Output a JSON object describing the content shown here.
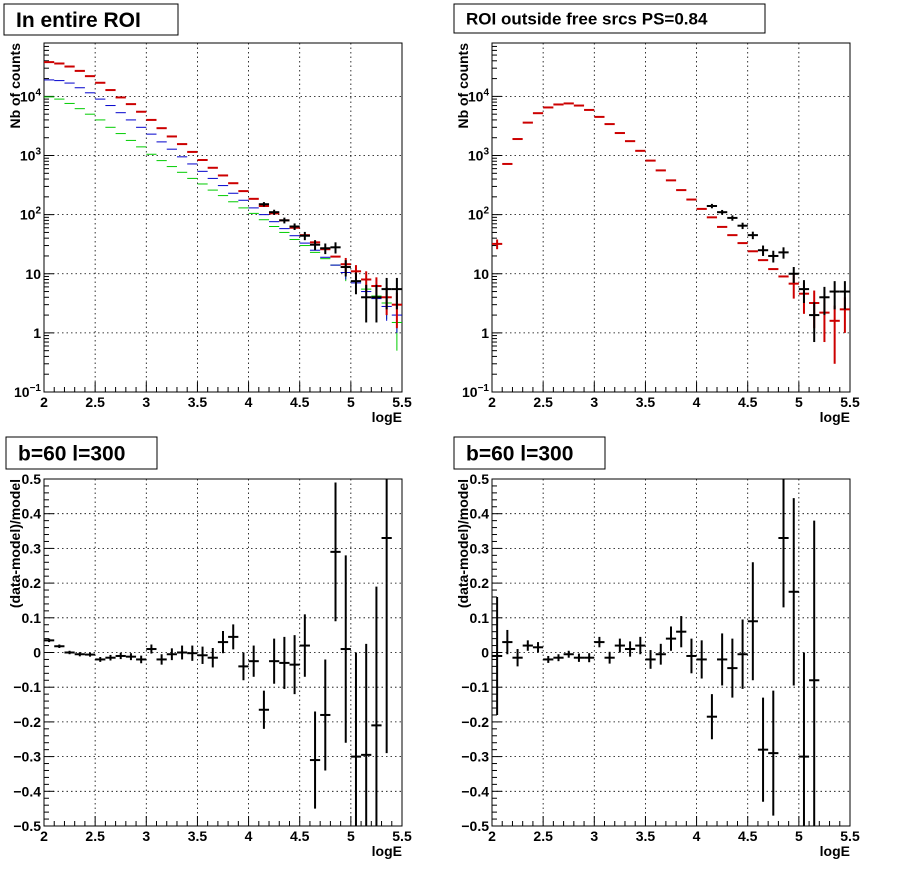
{
  "chart_data": [
    {
      "type": "scatter",
      "title": "In entire ROI",
      "xlabel": "logE",
      "ylabel": "Nb of counts",
      "xlim": [
        2,
        5.5
      ],
      "ylim": [
        0.1,
        80000
      ],
      "ylog": true,
      "grid": true,
      "xticks": [
        "2",
        "2.5",
        "3",
        "3.5",
        "4",
        "4.5",
        "5",
        "5.5"
      ],
      "yticks": [
        {
          "v": 0.1,
          "base": "10",
          "exp": "−1"
        },
        {
          "v": 1,
          "label": "1"
        },
        {
          "v": 10,
          "label": "10"
        },
        {
          "v": 100,
          "base": "10",
          "exp": "2"
        },
        {
          "v": 1000,
          "base": "10",
          "exp": "3"
        },
        {
          "v": 10000,
          "base": "10",
          "exp": "4"
        }
      ],
      "series": [
        {
          "color": "#00cc00",
          "marker": "cross-small",
          "x": [
            2.05,
            2.15,
            2.25,
            2.35,
            2.45,
            2.55,
            2.65,
            2.75,
            2.85,
            2.95,
            3.05,
            3.15,
            3.25,
            3.35,
            3.45,
            3.55,
            3.65,
            3.75,
            3.85,
            3.95,
            4.05,
            4.15,
            4.25,
            4.35,
            4.45,
            4.55,
            4.65,
            4.75,
            4.85,
            4.95,
            5.05,
            5.15,
            5.25,
            5.35,
            5.45
          ],
          "y": [
            9800,
            9000,
            7600,
            6200,
            5000,
            4000,
            3000,
            2350,
            1800,
            1400,
            1050,
            820,
            650,
            520,
            410,
            330,
            260,
            210,
            165,
            130,
            105,
            82,
            63,
            50,
            38,
            30,
            23,
            18,
            14,
            10.5,
            7.5,
            5.5,
            4.2,
            3.2,
            1.5
          ],
          "yerr": [
            0,
            0,
            0,
            0,
            0,
            0,
            0,
            0,
            0,
            0,
            0,
            0,
            0,
            0,
            0,
            0,
            0,
            0,
            0,
            0,
            0,
            0,
            0,
            0,
            0,
            0,
            0,
            0,
            0,
            3,
            2.5,
            2,
            1.8,
            1.5,
            1
          ]
        },
        {
          "color": "#0000cc",
          "marker": "cross-small",
          "x": [
            2.05,
            2.15,
            2.25,
            2.35,
            2.45,
            2.55,
            2.65,
            2.75,
            2.85,
            2.95,
            3.05,
            3.15,
            3.25,
            3.35,
            3.45,
            3.55,
            3.65,
            3.75,
            3.85,
            3.95,
            4.05,
            4.15,
            4.25,
            4.35,
            4.45,
            4.55,
            4.65,
            4.75,
            4.85,
            4.95,
            5.05,
            5.15,
            5.25,
            5.35,
            5.45
          ],
          "y": [
            19000,
            18500,
            16800,
            14000,
            11500,
            9000,
            7000,
            5300,
            4000,
            3000,
            2300,
            1700,
            1280,
            950,
            720,
            540,
            410,
            310,
            230,
            175,
            130,
            100,
            76,
            58,
            44,
            33,
            25,
            19,
            14,
            10.5,
            7,
            5,
            3.8,
            2.8,
            2
          ],
          "yerr": [
            0,
            0,
            0,
            0,
            0,
            0,
            0,
            0,
            0,
            0,
            0,
            0,
            0,
            0,
            0,
            0,
            0,
            0,
            0,
            0,
            0,
            0,
            0,
            0,
            0,
            0,
            0,
            0,
            0,
            2.5,
            2,
            1.8,
            1.5,
            1.2,
            1
          ]
        },
        {
          "color": "#cc0000",
          "marker": "cross",
          "x": [
            2.05,
            2.15,
            2.25,
            2.35,
            2.45,
            2.55,
            2.65,
            2.75,
            2.85,
            2.95,
            3.05,
            3.15,
            3.25,
            3.35,
            3.45,
            3.55,
            3.65,
            3.75,
            3.85,
            3.95,
            4.05,
            4.15,
            4.25,
            4.35,
            4.45,
            4.55,
            4.65,
            4.75,
            4.85,
            4.95,
            5.05,
            5.15,
            5.25,
            5.35,
            5.45
          ],
          "y": [
            38000,
            36000,
            32000,
            27000,
            22000,
            17000,
            12800,
            9600,
            7400,
            5500,
            4000,
            2900,
            2100,
            1560,
            1150,
            840,
            620,
            460,
            340,
            250,
            185,
            140,
            105,
            80,
            60,
            45,
            34,
            26,
            19.5,
            14.5,
            11,
            8,
            6.2,
            4,
            3
          ],
          "yerr": [
            0,
            0,
            0,
            0,
            0,
            0,
            0,
            0,
            0,
            0,
            0,
            0,
            0,
            0,
            0,
            0,
            0,
            0,
            0,
            0,
            0,
            0,
            0,
            0,
            0,
            0,
            0,
            0,
            0,
            4,
            3,
            3,
            2.5,
            2,
            1.8
          ]
        },
        {
          "color": "#000000",
          "marker": "cross",
          "x": [
            4.15,
            4.25,
            4.35,
            4.45,
            4.55,
            4.65,
            4.75,
            4.85,
            4.95,
            5.05,
            5.15,
            5.25,
            5.35,
            5.45
          ],
          "y": [
            150,
            110,
            80,
            63,
            44,
            31,
            27,
            28,
            13,
            7.5,
            4,
            4,
            5.5,
            5.5
          ],
          "yerr": [
            13,
            11,
            9,
            8,
            7,
            6,
            5.5,
            6,
            4,
            3,
            2.5,
            2.5,
            3,
            3
          ]
        }
      ]
    },
    {
      "type": "scatter",
      "title": "ROI outside free srcs PS=0.84",
      "xlabel": "logE",
      "ylabel": "Nb of counts",
      "xlim": [
        2,
        5.5
      ],
      "ylim": [
        0.1,
        80000
      ],
      "ylog": true,
      "grid": true,
      "xticks": [
        "2",
        "2.5",
        "3",
        "3.5",
        "4",
        "4.5",
        "5",
        "5.5"
      ],
      "yticks": [
        {
          "v": 0.1,
          "base": "10",
          "exp": "−1"
        },
        {
          "v": 1,
          "label": "1"
        },
        {
          "v": 10,
          "label": "10"
        },
        {
          "v": 100,
          "base": "10",
          "exp": "2"
        },
        {
          "v": 1000,
          "base": "10",
          "exp": "3"
        },
        {
          "v": 10000,
          "base": "10",
          "exp": "4"
        }
      ],
      "series": [
        {
          "color": "#cc0000",
          "marker": "cross",
          "x": [
            2.05,
            2.15,
            2.25,
            2.35,
            2.45,
            2.55,
            2.65,
            2.75,
            2.85,
            2.95,
            3.05,
            3.15,
            3.25,
            3.35,
            3.45,
            3.55,
            3.65,
            3.75,
            3.85,
            3.95,
            4.05,
            4.15,
            4.25,
            4.35,
            4.45,
            4.55,
            4.65,
            4.75,
            4.85,
            4.95,
            5.05,
            5.15,
            5.25,
            5.35,
            5.45
          ],
          "y": [
            32,
            720,
            1900,
            3600,
            5200,
            6500,
            7300,
            7600,
            7000,
            5900,
            4500,
            3400,
            2400,
            1750,
            1200,
            820,
            560,
            380,
            260,
            180,
            125,
            90,
            62,
            45,
            33,
            24,
            17,
            12,
            9,
            6.8,
            4.6,
            3.2,
            2.2,
            1.6,
            2.5
          ],
          "yerr": [
            6,
            0,
            0,
            0,
            0,
            0,
            0,
            0,
            0,
            0,
            0,
            0,
            0,
            0,
            0,
            0,
            0,
            0,
            0,
            0,
            0,
            0,
            0,
            0,
            0,
            0,
            0,
            0,
            0,
            3,
            2.5,
            2,
            1.5,
            1.3,
            1.5
          ]
        },
        {
          "color": "#000000",
          "marker": "cross",
          "x": [
            4.15,
            4.25,
            4.35,
            4.45,
            4.55,
            4.65,
            4.75,
            4.85,
            4.95,
            5.05,
            5.15,
            5.25,
            5.35,
            5.45
          ],
          "y": [
            140,
            110,
            88,
            65,
            45,
            25,
            20,
            23,
            10,
            5.5,
            2,
            4,
            5,
            5
          ],
          "yerr": [
            12,
            10,
            9,
            8,
            6.5,
            5,
            4.5,
            5,
            3,
            2.3,
            1.3,
            2,
            2.5,
            2.5
          ]
        }
      ]
    },
    {
      "type": "scatter",
      "title": "b=60 l=300",
      "xlabel": "logE",
      "ylabel": "(data-model)/model",
      "xlim": [
        2,
        5.5
      ],
      "ylim": [
        -0.5,
        0.5
      ],
      "ylog": false,
      "grid": true,
      "xticks": [
        "2",
        "2.5",
        "3",
        "3.5",
        "4",
        "4.5",
        "5",
        "5.5"
      ],
      "yticks": [
        {
          "v": -0.5,
          "label": "−0.5"
        },
        {
          "v": -0.4,
          "label": "−0.4"
        },
        {
          "v": -0.3,
          "label": "−0.3"
        },
        {
          "v": -0.2,
          "label": "−0.2"
        },
        {
          "v": -0.1,
          "label": "−0.1"
        },
        {
          "v": 0,
          "label": "0"
        },
        {
          "v": 0.1,
          "label": "0.1"
        },
        {
          "v": 0.2,
          "label": "0.2"
        },
        {
          "v": 0.3,
          "label": "0.3"
        },
        {
          "v": 0.4,
          "label": "0.4"
        },
        {
          "v": 0.5,
          "label": "0.5"
        }
      ],
      "series": [
        {
          "color": "#000000",
          "marker": "cross",
          "x": [
            2.05,
            2.15,
            2.25,
            2.35,
            2.45,
            2.55,
            2.65,
            2.75,
            2.85,
            2.95,
            3.05,
            3.15,
            3.25,
            3.35,
            3.45,
            3.55,
            3.65,
            3.75,
            3.85,
            3.95,
            4.05,
            4.15,
            4.25,
            4.35,
            4.45,
            4.55,
            4.65,
            4.75,
            4.85,
            4.95,
            5.05,
            5.15,
            5.25,
            5.35
          ],
          "y": [
            0.035,
            0.018,
            0.0,
            -0.005,
            -0.006,
            -0.02,
            -0.015,
            -0.01,
            -0.012,
            -0.02,
            0.01,
            -0.02,
            -0.005,
            0.0,
            -0.002,
            -0.008,
            -0.015,
            0.03,
            0.045,
            -0.04,
            -0.025,
            -0.165,
            -0.025,
            -0.03,
            -0.035,
            0.02,
            -0.31,
            -0.18,
            0.29,
            0.01,
            -0.3,
            -0.295,
            -0.21,
            0.33
          ],
          "yerr": [
            0.005,
            0.005,
            0.005,
            0.006,
            0.006,
            0.007,
            0.008,
            0.009,
            0.01,
            0.011,
            0.013,
            0.015,
            0.017,
            0.02,
            0.022,
            0.025,
            0.028,
            0.032,
            0.036,
            0.04,
            0.045,
            0.055,
            0.065,
            0.075,
            0.085,
            0.09,
            0.14,
            0.16,
            0.2,
            0.27,
            0.3,
            0.32,
            0.4,
            0.62
          ]
        }
      ]
    },
    {
      "type": "scatter",
      "title": "b=60 l=300",
      "xlabel": "logE",
      "ylabel": "(data-model)/model",
      "xlim": [
        2,
        5.5
      ],
      "ylim": [
        -0.5,
        0.5
      ],
      "ylog": false,
      "grid": true,
      "xticks": [
        "2",
        "2.5",
        "3",
        "3.5",
        "4",
        "4.5",
        "5",
        "5.5"
      ],
      "yticks": [
        {
          "v": -0.5,
          "label": "−0.5"
        },
        {
          "v": -0.4,
          "label": "−0.4"
        },
        {
          "v": -0.3,
          "label": "−0.3"
        },
        {
          "v": -0.2,
          "label": "−0.2"
        },
        {
          "v": -0.1,
          "label": "−0.1"
        },
        {
          "v": 0,
          "label": "0"
        },
        {
          "v": 0.1,
          "label": "0.1"
        },
        {
          "v": 0.2,
          "label": "0.2"
        },
        {
          "v": 0.3,
          "label": "0.3"
        },
        {
          "v": 0.4,
          "label": "0.4"
        },
        {
          "v": 0.5,
          "label": "0.5"
        }
      ],
      "series": [
        {
          "color": "#000000",
          "marker": "cross",
          "x": [
            2.05,
            2.15,
            2.25,
            2.35,
            2.45,
            2.55,
            2.65,
            2.75,
            2.85,
            2.95,
            3.05,
            3.15,
            3.25,
            3.35,
            3.45,
            3.55,
            3.65,
            3.75,
            3.85,
            3.95,
            4.05,
            4.15,
            4.25,
            4.35,
            4.45,
            4.55,
            4.65,
            4.75,
            4.85,
            4.95,
            5.05,
            5.15,
            5.25
          ],
          "y": [
            -0.01,
            0.03,
            -0.015,
            0.02,
            0.015,
            -0.02,
            -0.015,
            -0.005,
            -0.015,
            -0.015,
            0.03,
            -0.015,
            0.02,
            0.01,
            0.02,
            -0.02,
            -0.005,
            0.04,
            0.06,
            -0.01,
            -0.02,
            -0.185,
            -0.02,
            -0.045,
            -0.005,
            0.09,
            -0.28,
            -0.29,
            0.33,
            0.175,
            -0.3,
            -0.08,
            null
          ],
          "yerr": [
            0.17,
            0.035,
            0.025,
            0.015,
            0.015,
            0.01,
            0.01,
            0.01,
            0.012,
            0.013,
            0.015,
            0.017,
            0.02,
            0.022,
            0.025,
            0.027,
            0.03,
            0.035,
            0.045,
            0.05,
            0.055,
            0.065,
            0.075,
            0.085,
            0.1,
            0.17,
            0.15,
            0.18,
            0.2,
            0.27,
            0.3,
            0.46,
            0
          ]
        }
      ]
    }
  ]
}
